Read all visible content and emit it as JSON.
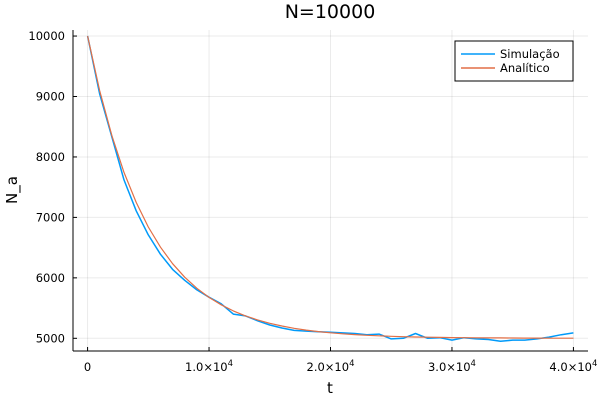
{
  "chart_data": {
    "type": "line",
    "title": "N=10000",
    "xlabel": "t",
    "ylabel": "N_a",
    "xlim": [
      -1200,
      41200
    ],
    "ylim": [
      4790,
      10100
    ],
    "grid": true,
    "legend_position": "top-right",
    "x_ticks": [
      {
        "value": 0,
        "label": "0"
      },
      {
        "value": 10000,
        "mantissa": "1.0×10",
        "exp": "4"
      },
      {
        "value": 20000,
        "mantissa": "2.0×10",
        "exp": "4"
      },
      {
        "value": 30000,
        "mantissa": "3.0×10",
        "exp": "4"
      },
      {
        "value": 40000,
        "mantissa": "4.0×10",
        "exp": "4"
      }
    ],
    "y_ticks": [
      {
        "value": 5000,
        "label": "5000"
      },
      {
        "value": 6000,
        "label": "6000"
      },
      {
        "value": 7000,
        "label": "7000"
      },
      {
        "value": 8000,
        "label": "8000"
      },
      {
        "value": 9000,
        "label": "9000"
      },
      {
        "value": 10000,
        "label": "10000"
      }
    ],
    "series": [
      {
        "name": "Simulação",
        "color": "#009af9",
        "x": [
          0,
          1000,
          2000,
          3000,
          4000,
          5000,
          6000,
          7000,
          8000,
          9000,
          10000,
          11000,
          12000,
          13000,
          14000,
          15000,
          16000,
          17000,
          18000,
          19000,
          20000,
          21000,
          22000,
          23000,
          24000,
          25000,
          26000,
          27000,
          28000,
          29000,
          30000,
          31000,
          32000,
          33000,
          34000,
          35000,
          36000,
          37000,
          38000,
          39000,
          40000
        ],
        "y": [
          10000,
          9040,
          8330,
          7620,
          7110,
          6710,
          6390,
          6140,
          5960,
          5800,
          5680,
          5570,
          5400,
          5370,
          5290,
          5220,
          5170,
          5130,
          5120,
          5110,
          5100,
          5090,
          5080,
          5060,
          5070,
          4990,
          5000,
          5080,
          5000,
          5010,
          4970,
          5010,
          4990,
          4980,
          4950,
          4970,
          4970,
          4990,
          5020,
          5060,
          5090
        ]
      },
      {
        "name": "Analítico",
        "color": "#e26f46",
        "x": [
          0,
          1000,
          2000,
          3000,
          4000,
          5000,
          6000,
          7000,
          8000,
          9000,
          10000,
          11000,
          12000,
          13000,
          14000,
          15000,
          16000,
          17000,
          18000,
          19000,
          20000,
          21000,
          22000,
          23000,
          24000,
          25000,
          26000,
          27000,
          28000,
          29000,
          30000,
          31000,
          32000,
          33000,
          34000,
          35000,
          36000,
          37000,
          38000,
          39000,
          40000
        ],
        "y": [
          10000,
          9094,
          8352,
          7745,
          7248,
          6841,
          6507,
          6234,
          6011,
          5828,
          5677,
          5554,
          5454,
          5371,
          5304,
          5249,
          5203,
          5166,
          5136,
          5111,
          5091,
          5074,
          5061,
          5050,
          5041,
          5033,
          5027,
          5022,
          5018,
          5015,
          5012,
          5010,
          5008,
          5007,
          5006,
          5005,
          5004,
          5003,
          5002,
          5002,
          5002
        ]
      }
    ]
  }
}
